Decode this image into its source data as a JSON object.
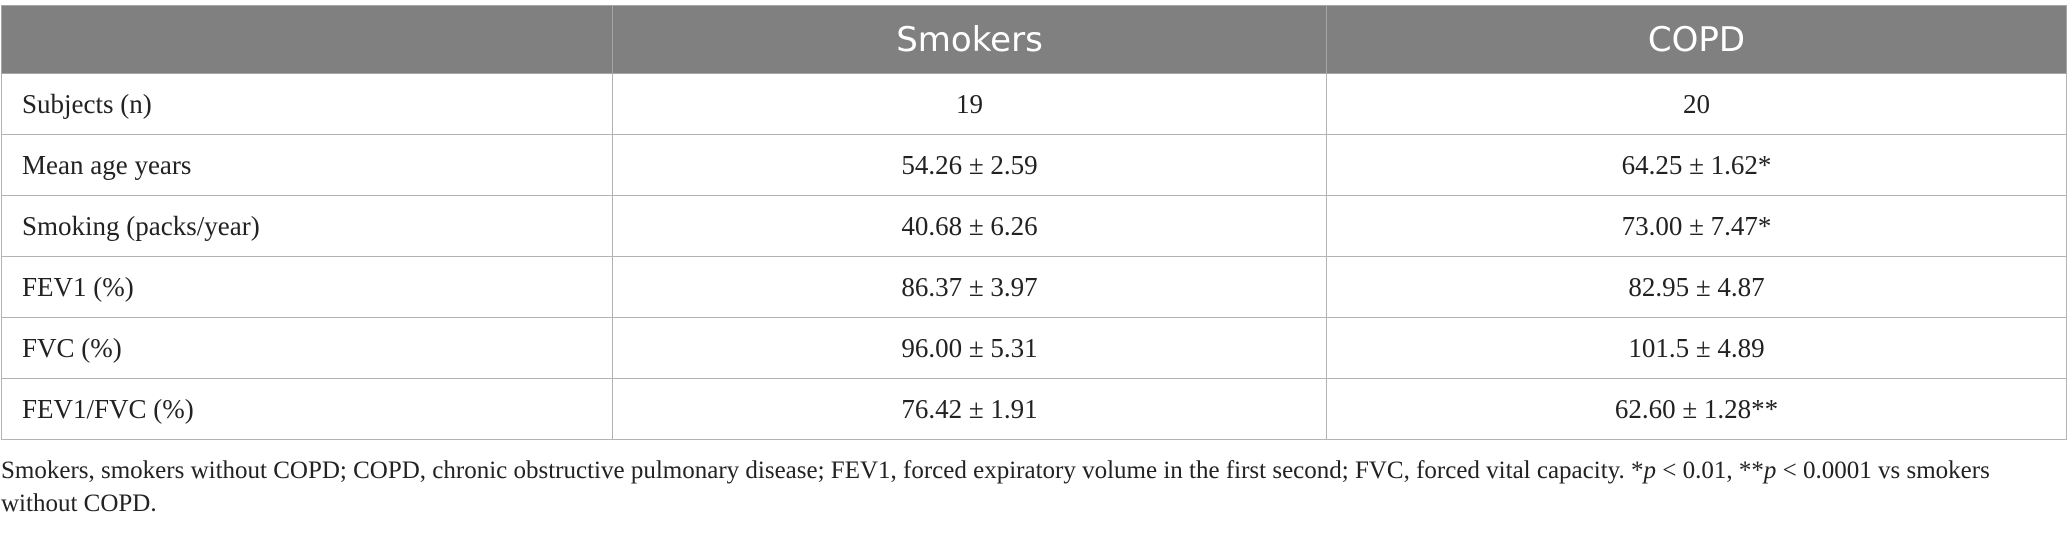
{
  "table": {
    "columns": [
      "",
      "Smokers",
      "COPD"
    ],
    "rows": [
      {
        "label": "Subjects (n)",
        "smokers": "19",
        "copd": "20"
      },
      {
        "label": "Mean age years",
        "smokers": "54.26 ± 2.59",
        "copd": "64.25 ± 1.62*"
      },
      {
        "label": "Smoking (packs/year)",
        "smokers": "40.68 ± 6.26",
        "copd": "73.00 ± 7.47*"
      },
      {
        "label": "FEV1 (%)",
        "smokers": "86.37 ± 3.97",
        "copd": "82.95 ± 4.87"
      },
      {
        "label": "FVC (%)",
        "smokers": "96.00 ± 5.31",
        "copd": "101.5 ± 4.89"
      },
      {
        "label": "FEV1/FVC (%)",
        "smokers": "76.42 ± 1.91",
        "copd": "62.60 ± 1.28**"
      }
    ]
  },
  "footnote": {
    "part1": "Smokers, smokers without COPD; COPD, chronic obstructive pulmonary disease; FEV1, forced expiratory volume in the first second; FVC, forced vital capacity. *",
    "p1": "p",
    "part2": " < 0.01, **",
    "p2": "p",
    "part3": " < 0.0001 vs smokers without COPD."
  },
  "colors": {
    "header_bg": "#808080",
    "header_text": "#ffffff",
    "border": "#b3b3b3"
  }
}
